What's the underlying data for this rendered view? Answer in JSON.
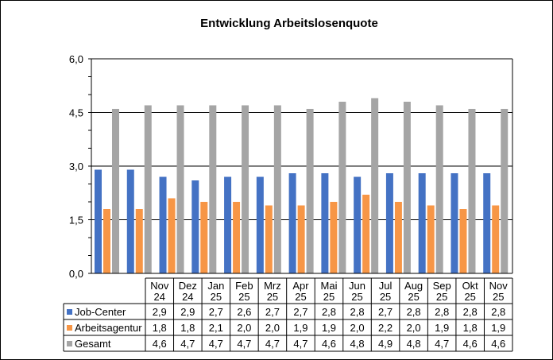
{
  "chart_data": {
    "type": "bar",
    "title": "Entwicklung  Arbeitslosenquote",
    "categories": [
      [
        "Nov",
        "24"
      ],
      [
        "Dez",
        "24"
      ],
      [
        "Jan",
        "25"
      ],
      [
        "Feb",
        "25"
      ],
      [
        "Mrz",
        "25"
      ],
      [
        "Apr",
        "25"
      ],
      [
        "Mai",
        "25"
      ],
      [
        "Jun",
        "25"
      ],
      [
        "Jul",
        "25"
      ],
      [
        "Aug",
        "25"
      ],
      [
        "Sep",
        "25"
      ],
      [
        "Okt",
        "25"
      ],
      [
        "Nov",
        "25"
      ]
    ],
    "series": [
      {
        "name": "Job-Center",
        "color": "#4472C4",
        "values": [
          2.9,
          2.9,
          2.7,
          2.6,
          2.7,
          2.7,
          2.8,
          2.8,
          2.7,
          2.8,
          2.8,
          2.8,
          2.8
        ],
        "labels": [
          "2,9",
          "2,9",
          "2,7",
          "2,6",
          "2,7",
          "2,7",
          "2,8",
          "2,8",
          "2,7",
          "2,8",
          "2,8",
          "2,8",
          "2,8"
        ]
      },
      {
        "name": "Arbeitsagentur",
        "color": "#F79646",
        "values": [
          1.8,
          1.8,
          2.1,
          2.0,
          2.0,
          1.9,
          1.9,
          2.0,
          2.2,
          2.0,
          1.9,
          1.8,
          1.9
        ],
        "labels": [
          "1,8",
          "1,8",
          "2,1",
          "2,0",
          "2,0",
          "1,9",
          "1,9",
          "2,0",
          "2,2",
          "2,0",
          "1,9",
          "1,8",
          "1,9"
        ]
      },
      {
        "name": "Gesamt",
        "color": "#A5A5A5",
        "values": [
          4.6,
          4.7,
          4.7,
          4.7,
          4.7,
          4.7,
          4.6,
          4.8,
          4.9,
          4.8,
          4.7,
          4.6,
          4.6
        ],
        "labels": [
          "4,6",
          "4,7",
          "4,7",
          "4,7",
          "4,7",
          "4,7",
          "4,6",
          "4,8",
          "4,9",
          "4,8",
          "4,7",
          "4,6",
          "4,6"
        ]
      }
    ],
    "ylim": [
      0,
      6
    ],
    "yticks": [
      0,
      1.5,
      3,
      4.5,
      6
    ],
    "ytick_labels": [
      "0,0",
      "1,5",
      "3,0",
      "4,5",
      "6,0"
    ],
    "grid": true,
    "legend": "data-table"
  }
}
